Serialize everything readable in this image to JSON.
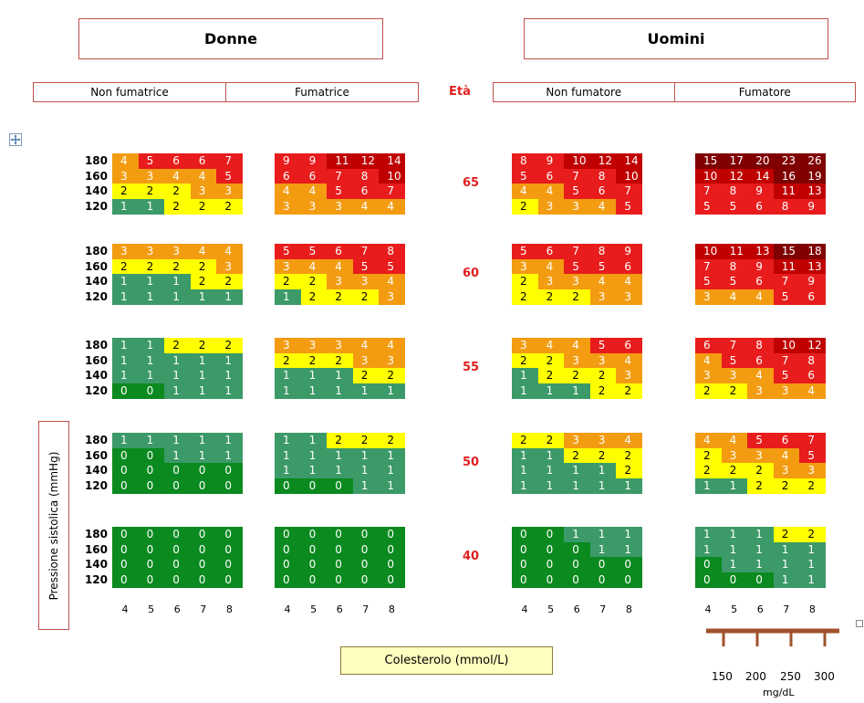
{
  "header": {
    "women": "Donne",
    "men": "Uomini",
    "women_non_smoker": "Non fumatrice",
    "women_smoker": "Fumatrice",
    "age_header": "Età",
    "men_non_smoker": "Non fumatore",
    "men_smoker": "Fumatore"
  },
  "y_axis_label": "Pressione sistolica (mmHg)",
  "x_axis_label": "Colesterolo (mmol/L)",
  "conversion": {
    "mgdl_ticks": [
      "150",
      "200",
      "250",
      "300"
    ],
    "unit": "mg/dL"
  },
  "chart_data": {
    "type": "heatmap",
    "x_ticks": [
      "4",
      "5",
      "6",
      "7",
      "8"
    ],
    "y_ticks": [
      "180",
      "160",
      "140",
      "120"
    ],
    "ages": [
      "65",
      "60",
      "55",
      "50",
      "40"
    ],
    "groups": [
      "Donne - Non fumatrice",
      "Donne - Fumatrice",
      "Uomini - Non fumatore",
      "Uomini - Fumatore"
    ],
    "values": {
      "65": [
        [
          [
            4,
            5,
            6,
            6,
            7
          ],
          [
            3,
            3,
            4,
            4,
            5
          ],
          [
            2,
            2,
            2,
            3,
            3
          ],
          [
            1,
            1,
            2,
            2,
            2
          ]
        ],
        [
          [
            9,
            9,
            11,
            12,
            14
          ],
          [
            6,
            6,
            7,
            8,
            10
          ],
          [
            4,
            4,
            5,
            6,
            7
          ],
          [
            3,
            3,
            3,
            4,
            4
          ]
        ],
        [
          [
            8,
            9,
            10,
            12,
            14
          ],
          [
            5,
            6,
            7,
            8,
            10
          ],
          [
            4,
            4,
            5,
            6,
            7
          ],
          [
            2,
            3,
            3,
            4,
            5
          ]
        ],
        [
          [
            15,
            17,
            20,
            23,
            26
          ],
          [
            10,
            12,
            14,
            16,
            19
          ],
          [
            7,
            8,
            9,
            11,
            13
          ],
          [
            5,
            5,
            6,
            8,
            9
          ]
        ]
      ],
      "60": [
        [
          [
            3,
            3,
            3,
            4,
            4
          ],
          [
            2,
            2,
            2,
            2,
            3
          ],
          [
            1,
            1,
            1,
            2,
            2
          ],
          [
            1,
            1,
            1,
            1,
            1
          ]
        ],
        [
          [
            5,
            5,
            6,
            7,
            8
          ],
          [
            3,
            4,
            4,
            5,
            5
          ],
          [
            2,
            2,
            3,
            3,
            4
          ],
          [
            1,
            2,
            2,
            2,
            3
          ]
        ],
        [
          [
            5,
            6,
            7,
            8,
            9
          ],
          [
            3,
            4,
            5,
            5,
            6
          ],
          [
            2,
            3,
            3,
            4,
            4
          ],
          [
            2,
            2,
            2,
            3,
            3
          ]
        ],
        [
          [
            10,
            11,
            13,
            15,
            18
          ],
          [
            7,
            8,
            9,
            11,
            13
          ],
          [
            5,
            5,
            6,
            7,
            9
          ],
          [
            3,
            4,
            4,
            5,
            6
          ]
        ]
      ],
      "55": [
        [
          [
            1,
            1,
            2,
            2,
            2
          ],
          [
            1,
            1,
            1,
            1,
            1
          ],
          [
            1,
            1,
            1,
            1,
            1
          ],
          [
            0,
            0,
            1,
            1,
            1
          ]
        ],
        [
          [
            3,
            3,
            3,
            4,
            4
          ],
          [
            2,
            2,
            2,
            3,
            3
          ],
          [
            1,
            1,
            1,
            2,
            2
          ],
          [
            1,
            1,
            1,
            1,
            1
          ]
        ],
        [
          [
            3,
            4,
            4,
            5,
            6
          ],
          [
            2,
            2,
            3,
            3,
            4
          ],
          [
            1,
            2,
            2,
            2,
            3
          ],
          [
            1,
            1,
            1,
            2,
            2
          ]
        ],
        [
          [
            6,
            7,
            8,
            10,
            12
          ],
          [
            4,
            5,
            6,
            7,
            8
          ],
          [
            3,
            3,
            4,
            5,
            6
          ],
          [
            2,
            2,
            3,
            3,
            4
          ]
        ]
      ],
      "50": [
        [
          [
            1,
            1,
            1,
            1,
            1
          ],
          [
            0,
            0,
            1,
            1,
            1
          ],
          [
            0,
            0,
            0,
            0,
            0
          ],
          [
            0,
            0,
            0,
            0,
            0
          ]
        ],
        [
          [
            1,
            1,
            2,
            2,
            2
          ],
          [
            1,
            1,
            1,
            1,
            1
          ],
          [
            1,
            1,
            1,
            1,
            1
          ],
          [
            0,
            0,
            0,
            1,
            1
          ]
        ],
        [
          [
            2,
            2,
            3,
            3,
            4
          ],
          [
            1,
            1,
            2,
            2,
            2
          ],
          [
            1,
            1,
            1,
            1,
            2
          ],
          [
            1,
            1,
            1,
            1,
            1
          ]
        ],
        [
          [
            4,
            4,
            5,
            6,
            7
          ],
          [
            2,
            3,
            3,
            4,
            5
          ],
          [
            2,
            2,
            2,
            3,
            3
          ],
          [
            1,
            1,
            2,
            2,
            2
          ]
        ]
      ],
      "40": [
        [
          [
            0,
            0,
            0,
            0,
            0
          ],
          [
            0,
            0,
            0,
            0,
            0
          ],
          [
            0,
            0,
            0,
            0,
            0
          ],
          [
            0,
            0,
            0,
            0,
            0
          ]
        ],
        [
          [
            0,
            0,
            0,
            0,
            0
          ],
          [
            0,
            0,
            0,
            0,
            0
          ],
          [
            0,
            0,
            0,
            0,
            0
          ],
          [
            0,
            0,
            0,
            0,
            0
          ]
        ],
        [
          [
            0,
            0,
            1,
            1,
            1
          ],
          [
            0,
            0,
            0,
            1,
            1
          ],
          [
            0,
            0,
            0,
            0,
            0
          ],
          [
            0,
            0,
            0,
            0,
            0
          ]
        ],
        [
          [
            1,
            1,
            1,
            2,
            2
          ],
          [
            1,
            1,
            1,
            1,
            1
          ],
          [
            0,
            1,
            1,
            1,
            1
          ],
          [
            0,
            0,
            0,
            1,
            1
          ]
        ]
      ]
    },
    "risk_colors": {
      "0": "#0a8a1f",
      "1": "#3c9a68",
      "2": "#ffff00",
      "3-4": "#f39c12",
      "5-9": "#e81c1c",
      "10-14": "#c00000",
      "15+": "#800000"
    }
  }
}
